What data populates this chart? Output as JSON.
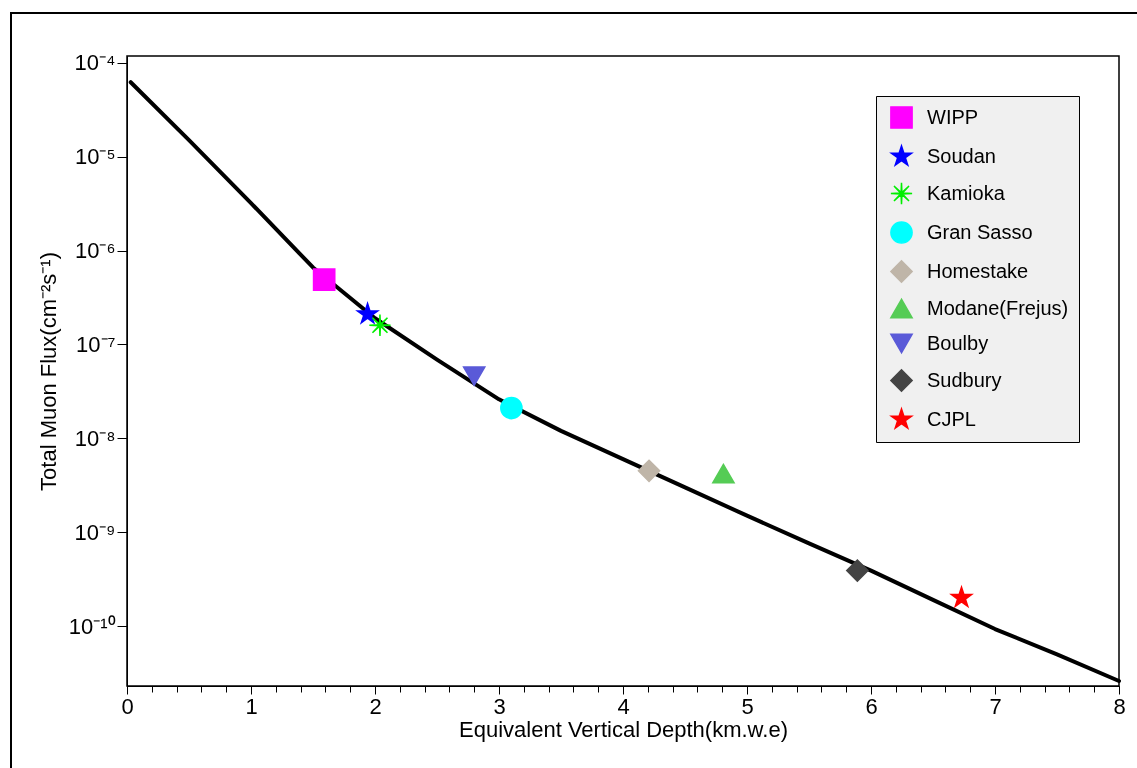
{
  "chart_data": {
    "type": "scatter",
    "xlabel": "Equivalent Vertical Depth(km.w.e)",
    "ylabel": "Total Muon Flux(cm⁻²s⁻¹)",
    "log": "y",
    "xlim": [
      0,
      8
    ],
    "xticks": [
      0,
      {
        "value": 0.2,
        "label": null
      },
      {
        "value": 0.4,
        "label": null
      },
      {
        "value": 0.6,
        "label": null
      },
      {
        "value": 0.8,
        "label": null
      },
      1,
      {
        "value": 1.2,
        "label": null
      },
      {
        "value": 1.4,
        "label": null
      },
      {
        "value": 1.6,
        "label": null
      },
      {
        "value": 1.8,
        "label": null
      },
      2,
      {
        "value": 2.2,
        "label": null
      },
      {
        "value": 2.4,
        "label": null
      },
      {
        "value": 2.6,
        "label": null
      },
      {
        "value": 2.8,
        "label": null
      },
      3,
      {
        "value": 3.2,
        "label": null
      },
      {
        "value": 3.4,
        "label": null
      },
      {
        "value": 3.6,
        "label": null
      },
      {
        "value": 3.8,
        "label": null
      },
      4,
      {
        "value": 4.2,
        "label": null
      },
      {
        "value": 4.4,
        "label": null
      },
      {
        "value": 4.6,
        "label": null
      },
      {
        "value": 4.8,
        "label": null
      },
      5,
      {
        "value": 5.2,
        "label": null
      },
      {
        "value": 5.4,
        "label": null
      },
      {
        "value": 5.6,
        "label": null
      },
      {
        "value": 5.8,
        "label": null
      },
      6,
      {
        "value": 6.2,
        "label": null
      },
      {
        "value": 6.4,
        "label": null
      },
      {
        "value": 6.6,
        "label": null
      },
      {
        "value": 6.8,
        "label": null
      },
      7,
      {
        "value": 7.2,
        "label": null
      },
      {
        "value": 7.4,
        "label": null
      },
      {
        "value": 7.6,
        "label": null
      },
      {
        "value": 7.8,
        "label": null
      },
      8
    ],
    "ylim": [
      2.3e-11,
      0.000118
    ],
    "yticks": [
      {
        "value": 0.0001,
        "label": "10⁻⁴"
      },
      {
        "value": 1e-05,
        "label": "10⁻⁵"
      },
      {
        "value": 1e-06,
        "label": "10⁻⁶"
      },
      {
        "value": 1e-07,
        "label": "10⁻⁷"
      },
      {
        "value": 1e-08,
        "label": "10⁻⁸"
      },
      {
        "value": 1e-09,
        "label": "10⁻⁹"
      },
      {
        "value": 1e-10,
        "label": "10⁻¹⁰"
      }
    ],
    "grid": false,
    "legend": "top right",
    "series": [
      {
        "type": "line",
        "color": "#000000",
        "line_style": "solid",
        "x": [
          0.03,
          0.5,
          1,
          1.5,
          2,
          2.5,
          3,
          3.5,
          4,
          4.5,
          5,
          5.5,
          6,
          6.5,
          7,
          7.5,
          8
        ],
        "values": [
          6.2e-05,
          1.5e-05,
          3.2e-06,
          6.6e-07,
          1.9e-07,
          6.9e-08,
          2.6e-08,
          1.2e-08,
          6e-09,
          3e-09,
          1.5e-09,
          7.6e-10,
          3.9e-10,
          1.9e-10,
          9.3e-11,
          5e-11,
          2.6e-11
        ]
      },
      {
        "name": "WIPP",
        "color": "#ff00ff",
        "marker": "square",
        "x": [
          1.59
        ],
        "values": [
          4.9e-07
        ]
      },
      {
        "name": "Soudan",
        "color": "#0000ff",
        "marker": "star",
        "x": [
          1.94
        ],
        "values": [
          2.1e-07
        ]
      },
      {
        "name": "Kamioka",
        "color": "#00ee00",
        "marker": "cross",
        "x": [
          2.04
        ],
        "values": [
          1.6e-07
        ]
      },
      {
        "name": "Gran Sasso",
        "color": "#00ffff",
        "marker": "circle",
        "x": [
          3.1
        ],
        "values": [
          2.1e-08
        ]
      },
      {
        "name": "Homestake",
        "color": "#bfb5a8",
        "marker": "diamond",
        "x": [
          4.21
        ],
        "values": [
          4.5e-09
        ]
      },
      {
        "name": "Modane(Frejus)",
        "color": "#55cc55",
        "marker": "triangle",
        "x": [
          4.81
        ],
        "values": [
          4.2e-09
        ]
      },
      {
        "name": "Boulby",
        "color": "#5a5ad8",
        "marker": "triangle-down",
        "x": [
          2.8
        ],
        "values": [
          4.6e-08
        ]
      },
      {
        "name": "Sudbury",
        "color": "#444444",
        "marker": "diamond",
        "x": [
          5.89
        ],
        "values": [
          3.9e-10
        ]
      },
      {
        "name": "CJPL",
        "color": "#ff0000",
        "marker": "star",
        "x": [
          6.73
        ],
        "values": [
          2e-10
        ]
      }
    ]
  }
}
